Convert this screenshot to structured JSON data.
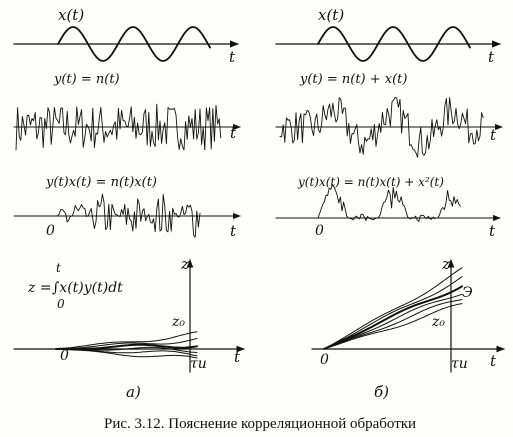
{
  "left": {
    "x_label": "x(t)",
    "y_label": "y(t) = n(t)",
    "prod_label": "y(t)x(t) = n(t)x(t)",
    "integral_lhs": "z =",
    "integral_expr": "∫x(t)y(t)dt",
    "integral_upper": "t",
    "integral_lower": "0",
    "z_axis_label": "z",
    "z0_label": "z₀",
    "tau_label": "τи",
    "t_label": "t",
    "origin_label": "0",
    "panel_label": "а)"
  },
  "right": {
    "x_label": "x(t)",
    "y_label": "y(t) = n(t) + x(t)",
    "prod_label": "y(t)x(t) = n(t)x(t) + x²(t)",
    "z_axis_label": "z",
    "e_label": "Э",
    "z0_label": "z₀",
    "tau_label": "τи",
    "t_label": "t",
    "origin_label": "0",
    "panel_label": "б)"
  },
  "caption": "Рис. 3.12. Пояснение корреляционной обработки"
}
